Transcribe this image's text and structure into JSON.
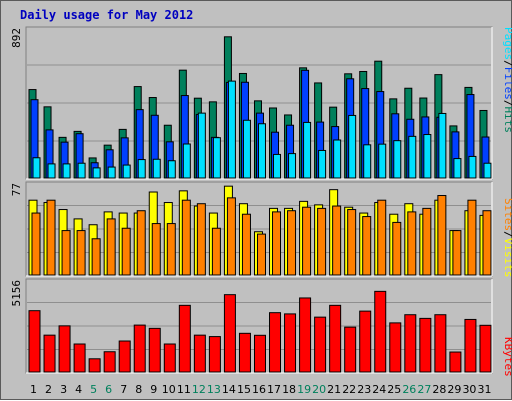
{
  "title": "Daily usage for May 2012",
  "colors": {
    "hits": "#00805C",
    "files": "#0040FF",
    "pages": "#00E0FF",
    "visits": "#FFFF00",
    "sites": "#FF8000",
    "kbytes": "#FF0000",
    "weekday_label": "#000000",
    "weekend_label": "#00805C"
  },
  "chart_data": [
    {
      "type": "bar",
      "name": "hits-files-pages",
      "ymax_label": "892",
      "ylim": [
        0,
        892
      ],
      "legend": [
        "Pages",
        "/",
        "Files",
        "/",
        "Hits"
      ],
      "categories": [
        "1",
        "2",
        "3",
        "4",
        "5",
        "6",
        "7",
        "8",
        "9",
        "10",
        "11",
        "12",
        "13",
        "14",
        "15",
        "16",
        "17",
        "18",
        "19",
        "20",
        "21",
        "22",
        "23",
        "24",
        "25",
        "26",
        "27",
        "28",
        "29",
        "30",
        "31"
      ],
      "series": [
        {
          "name": "Hits",
          "values": [
            533,
            429,
            245,
            281,
            121,
            198,
            293,
            551,
            485,
            318,
            650,
            481,
            459,
            851,
            630,
            465,
            422,
            380,
            664,
            573,
            427,
            628,
            642,
            704,
            477,
            541,
            482,
            623,
            314,
            546,
            407
          ]
        },
        {
          "name": "Files",
          "values": [
            472,
            290,
            216,
            267,
            92,
            170,
            242,
            412,
            378,
            218,
            497,
            383,
            245,
            576,
            577,
            391,
            276,
            318,
            649,
            337,
            310,
            598,
            539,
            521,
            387,
            354,
            368,
            366,
            278,
            503,
            247
          ]
        },
        {
          "name": "Pages",
          "values": [
            122,
            85,
            85,
            89,
            61,
            66,
            78,
            111,
            113,
            104,
            205,
            391,
            243,
            584,
            348,
            327,
            142,
            147,
            335,
            166,
            229,
            377,
            200,
            204,
            225,
            251,
            262,
            389,
            117,
            130,
            89
          ]
        }
      ]
    },
    {
      "type": "bar",
      "name": "visits-sites",
      "ymax_label": "77",
      "ylim": [
        0,
        77
      ],
      "legend": [
        "Sites",
        "/",
        "Visits"
      ],
      "categories": [
        "1",
        "2",
        "3",
        "4",
        "5",
        "6",
        "7",
        "8",
        "9",
        "10",
        "11",
        "12",
        "13",
        "14",
        "15",
        "16",
        "17",
        "18",
        "19",
        "20",
        "21",
        "22",
        "23",
        "24",
        "25",
        "26",
        "27",
        "28",
        "29",
        "30",
        "31"
      ],
      "series": [
        {
          "name": "Visits",
          "values": [
            64,
            62,
            56,
            48,
            43,
            54,
            53,
            53,
            71,
            62,
            72,
            59,
            53,
            76,
            61,
            37,
            57,
            57,
            63,
            60,
            73,
            58,
            53,
            62,
            52,
            61,
            52,
            64,
            38,
            55,
            51
          ]
        },
        {
          "name": "Sites",
          "values": [
            53,
            64,
            38,
            38,
            31,
            48,
            40,
            55,
            44,
            44,
            64,
            61,
            40,
            66,
            52,
            35,
            54,
            55,
            58,
            57,
            59,
            56,
            50,
            64,
            45,
            54,
            57,
            68,
            38,
            64,
            55
          ]
        }
      ]
    },
    {
      "type": "bar",
      "name": "kbytes",
      "ymax_label": "5156",
      "ylim": [
        0,
        5156
      ],
      "legend": [
        "KBytes"
      ],
      "categories": [
        "1",
        "2",
        "3",
        "4",
        "5",
        "6",
        "7",
        "8",
        "9",
        "10",
        "11",
        "12",
        "13",
        "14",
        "15",
        "16",
        "17",
        "18",
        "19",
        "20",
        "21",
        "22",
        "23",
        "24",
        "25",
        "26",
        "27",
        "28",
        "29",
        "30",
        "31"
      ],
      "series": [
        {
          "name": "KBytes",
          "values": [
            3513,
            2111,
            2645,
            1604,
            757,
            1161,
            1775,
            2687,
            2501,
            1604,
            3819,
            2111,
            2029,
            4431,
            2216,
            2103,
            3399,
            3329,
            4242,
            3143,
            3819,
            2570,
            3488,
            4620,
            2814,
            3282,
            3072,
            3282,
            1144,
            3011,
            2675
          ]
        }
      ]
    }
  ],
  "weekend_days": [
    "5",
    "6",
    "12",
    "13",
    "19",
    "20",
    "26",
    "27"
  ]
}
